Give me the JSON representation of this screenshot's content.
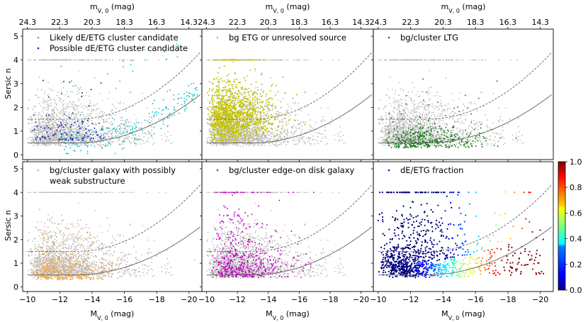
{
  "figure": {
    "type": "scatter-grid",
    "xlabel_bottom": "M",
    "xlabel_bottom_sub": "V, 0",
    "xlabel_bottom_unit": " (mag)",
    "xlabel_top": "m",
    "xlabel_top_sub": "V, 0",
    "xlabel_top_unit": " (mag)",
    "ylabel": "Sersic n"
  },
  "colors": {
    "background_points": "#bdbdbd",
    "ridge_line": "#606060",
    "dE_likely": "#1fc4c4",
    "dE_possible": "#1414b4",
    "bg_etg": "#c2c20a",
    "ltg": "#127a12",
    "substructure": "#f2a64a",
    "edge_on": "#c000c0"
  },
  "chart_data": [
    {
      "type": "scatter",
      "panel": "top-left",
      "legend": [
        "Likely dE/ETG cluster candidate",
        "Possible dE/ETG cluster candidate"
      ],
      "legend_keys": [
        "dE_likely",
        "dE_possible"
      ],
      "x_bottom_ticks": [],
      "x_top_ticks": [
        "24.3",
        "22.3",
        "20.3",
        "18.3",
        "16.3",
        "14.3"
      ],
      "y_ticks": [
        "0",
        "1",
        "2",
        "3",
        "4",
        "5"
      ],
      "xlim": [
        -9.7,
        -20.8
      ],
      "ylim": [
        -0.2,
        5.3
      ]
    },
    {
      "type": "scatter",
      "panel": "top-middle",
      "legend": [
        "bg ETG or unresolved source"
      ],
      "legend_keys": [
        "bg_etg"
      ],
      "x_bottom_ticks": [],
      "x_top_ticks": [
        "24.3",
        "22.3",
        "20.3",
        "18.3",
        "16.3",
        "14.3"
      ],
      "y_ticks": [],
      "xlim": [
        -9.7,
        -20.8
      ],
      "ylim": [
        -0.2,
        5.3
      ]
    },
    {
      "type": "scatter",
      "panel": "top-right",
      "legend": [
        "bg/cluster LTG"
      ],
      "legend_keys": [
        "ltg"
      ],
      "x_bottom_ticks": [],
      "x_top_ticks": [
        "24.3",
        "22.3",
        "20.3",
        "18.3",
        "16.3",
        "14.3"
      ],
      "y_ticks": [],
      "xlim": [
        -9.7,
        -20.8
      ],
      "ylim": [
        -0.2,
        5.3
      ]
    },
    {
      "type": "scatter",
      "panel": "bottom-left",
      "legend": [
        "bg/cluster galaxy with possibly",
        "weak substructure"
      ],
      "legend_keys": [
        "substructure"
      ],
      "x_bottom_ticks": [
        "−10",
        "−12",
        "−14",
        "−16",
        "−18",
        "−20"
      ],
      "x_top_ticks": [],
      "y_ticks": [
        "0",
        "1",
        "2",
        "3",
        "4",
        "5"
      ],
      "xlim": [
        -9.7,
        -20.8
      ],
      "ylim": [
        -0.2,
        5.3
      ]
    },
    {
      "type": "scatter",
      "panel": "bottom-middle",
      "legend": [
        "bg/cluster edge-on disk galaxy"
      ],
      "legend_keys": [
        "edge_on"
      ],
      "x_bottom_ticks": [
        "−10",
        "−12",
        "−14",
        "−16",
        "−18",
        "−20"
      ],
      "x_top_ticks": [],
      "y_ticks": [],
      "xlim": [
        -9.7,
        -20.8
      ],
      "ylim": [
        -0.2,
        5.3
      ]
    },
    {
      "type": "scatter",
      "panel": "bottom-right",
      "legend": [
        "dE/ETG fraction"
      ],
      "legend_keys": [
        "fraction"
      ],
      "x_bottom_ticks": [
        "−10",
        "−12",
        "−14",
        "−16",
        "−18",
        "−20"
      ],
      "x_top_ticks": [],
      "y_ticks": [],
      "xlim": [
        -9.7,
        -20.8
      ],
      "ylim": [
        -0.2,
        5.3
      ]
    }
  ],
  "colorbar": {
    "ticks": [
      "0.0",
      "0.2",
      "0.4",
      "0.6",
      "0.8",
      "1.0"
    ],
    "range": [
      0,
      1
    ]
  }
}
